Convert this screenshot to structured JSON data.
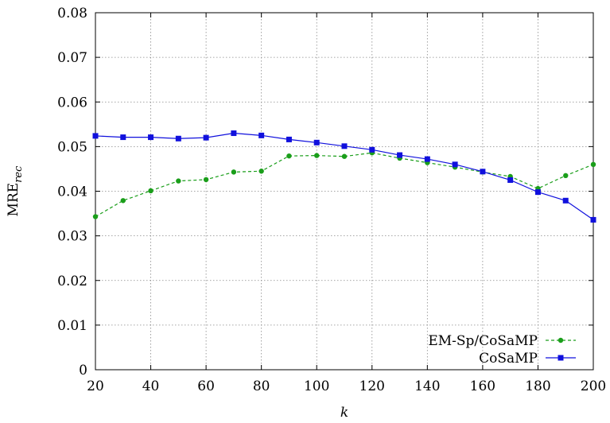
{
  "chart_data": {
    "type": "line",
    "xlabel": "k",
    "ylabel": {
      "main": "MRE",
      "sub": "rec"
    },
    "xlim": [
      20,
      200
    ],
    "ylim": [
      0,
      0.08
    ],
    "xticks": [
      "20",
      "40",
      "60",
      "80",
      "100",
      "120",
      "140",
      "160",
      "180",
      "200"
    ],
    "yticks": [
      "0",
      "0.01",
      "0.02",
      "0.03",
      "0.04",
      "0.05",
      "0.06",
      "0.07",
      "0.08"
    ],
    "grid": true,
    "legend_position": "bottom-right",
    "x": [
      20,
      30,
      40,
      50,
      60,
      70,
      80,
      90,
      100,
      110,
      120,
      130,
      140,
      150,
      160,
      170,
      180,
      190,
      200
    ],
    "series": [
      {
        "name": "EM-Sp/CoSaMP",
        "color": "#1a9e1a",
        "marker": "circle",
        "line": "dashed",
        "values": [
          0.0343,
          0.0379,
          0.0401,
          0.0423,
          0.0426,
          0.0443,
          0.0445,
          0.0479,
          0.048,
          0.0478,
          0.0486,
          0.0474,
          0.0464,
          0.0454,
          0.0443,
          0.0433,
          0.0406,
          0.0435,
          0.046
        ]
      },
      {
        "name": "CoSaMP",
        "color": "#1010dd",
        "marker": "square",
        "line": "solid",
        "values": [
          0.0524,
          0.0521,
          0.0521,
          0.0518,
          0.052,
          0.053,
          0.0525,
          0.0516,
          0.0509,
          0.0501,
          0.0493,
          0.0481,
          0.0472,
          0.046,
          0.0444,
          0.0425,
          0.0398,
          0.0379,
          0.0336
        ]
      }
    ]
  }
}
